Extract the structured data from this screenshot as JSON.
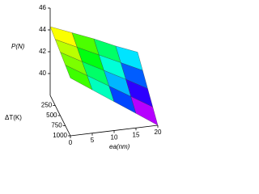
{
  "chart_data": {
    "type": "surface",
    "zlabel": "P(N)",
    "xlabel": "ea(nm)",
    "ylabel": "ΔT(K)",
    "x": [
      0,
      5,
      10,
      15,
      20
    ],
    "y": [
      0,
      250,
      500,
      750,
      1000
    ],
    "z": [
      [
        44.3,
        43.5,
        42.7,
        41.8,
        41.0
      ],
      [
        44.05,
        43.1,
        42.15,
        41.2,
        40.25
      ],
      [
        43.8,
        42.7,
        41.65,
        40.6,
        39.5
      ],
      [
        43.55,
        42.35,
        41.15,
        39.95,
        38.75
      ],
      [
        43.3,
        41.97,
        40.65,
        39.33,
        38.0
      ]
    ],
    "xlim": [
      0,
      20
    ],
    "xticks": [
      0,
      5,
      10,
      15,
      20
    ],
    "ylim": [
      0,
      1000
    ],
    "yticks": [
      250,
      500,
      750,
      1000
    ],
    "zlim": [
      38,
      46
    ],
    "zticks": [
      40,
      42,
      44,
      46
    ],
    "colormap": [
      "#ff00ff",
      "#0000ff",
      "#00ffff",
      "#00ff00",
      "#ffff00",
      "#ffa500"
    ]
  }
}
